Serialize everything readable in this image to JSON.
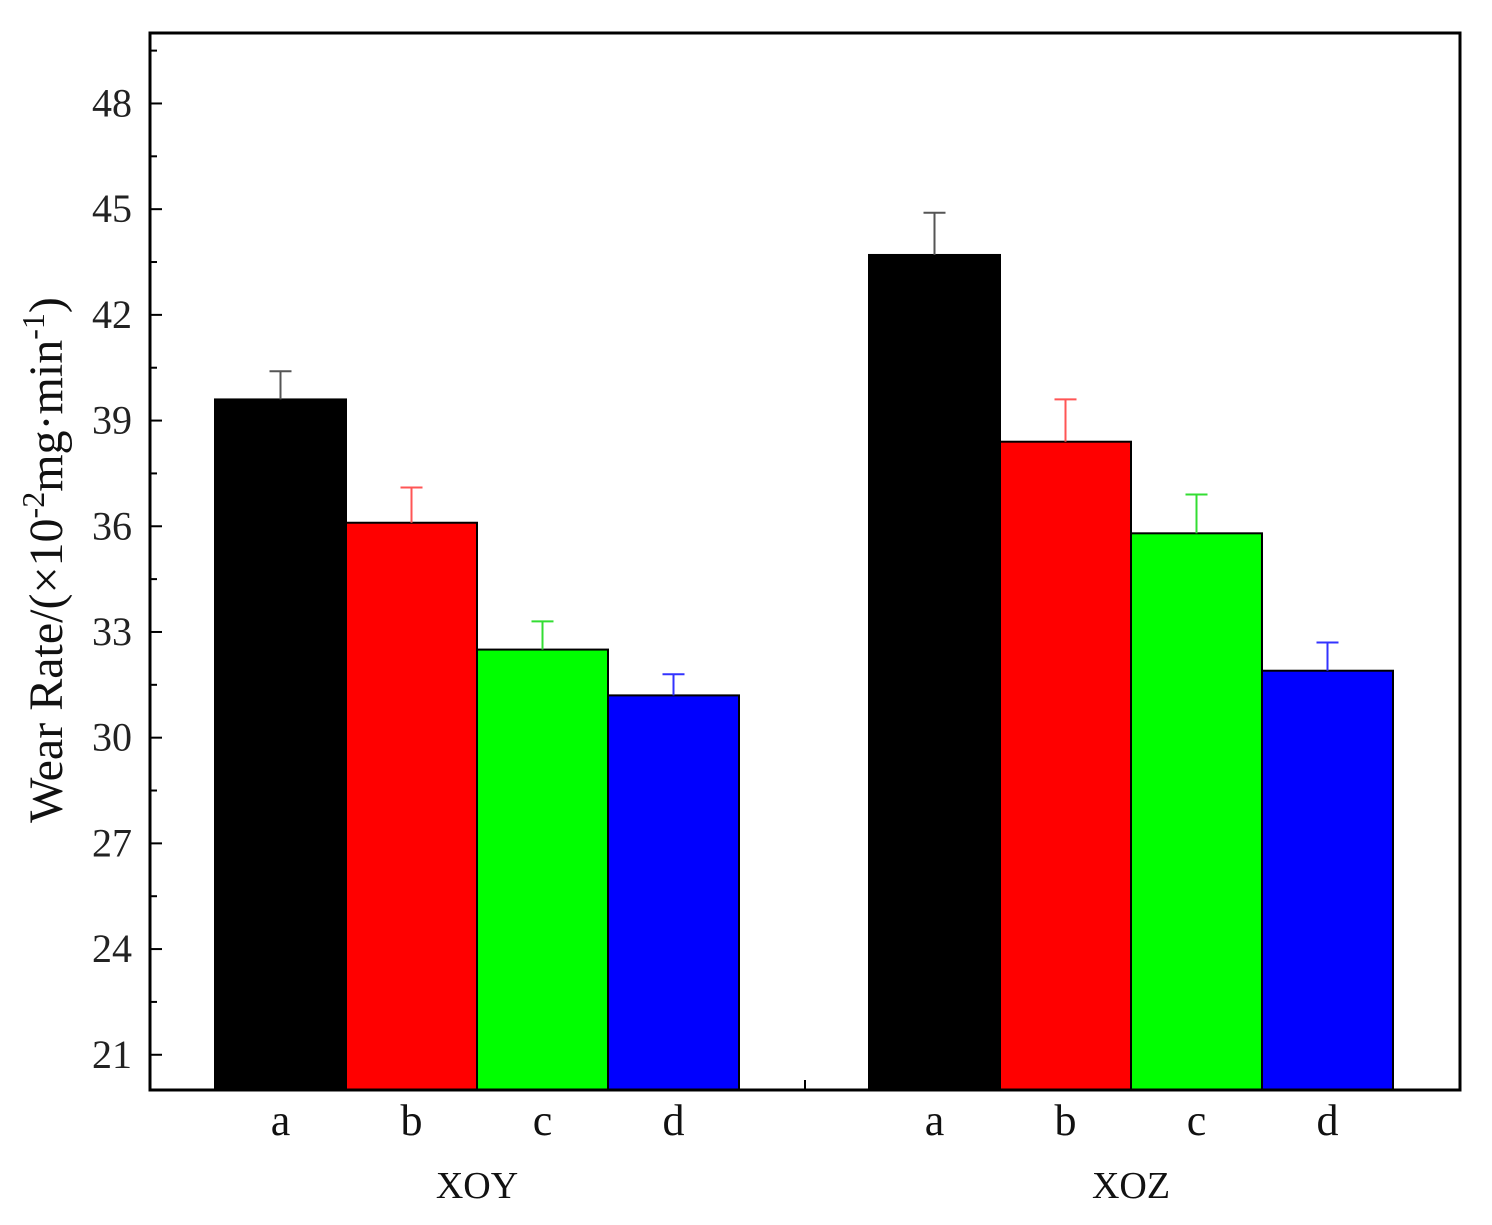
{
  "chart_data": {
    "type": "bar",
    "title": "",
    "xlabel": "",
    "ylabel": {
      "prefix": "Wear Rate/(×10",
      "sup1": "-2",
      "middle": "mg·min",
      "sup2": "-1",
      "suffix": ")"
    },
    "ylim": [
      20,
      50
    ],
    "yticks": [
      21,
      24,
      27,
      30,
      33,
      36,
      39,
      42,
      45,
      48
    ],
    "grid": false,
    "groups": [
      {
        "name": "XOY",
        "bars": [
          {
            "label": "a",
            "value": 39.6,
            "error": 0.8,
            "color": "#000000",
            "error_color": "#555555"
          },
          {
            "label": "b",
            "value": 36.1,
            "error": 1.0,
            "color": "#ff0000",
            "error_color": "#ff5555"
          },
          {
            "label": "c",
            "value": 32.5,
            "error": 0.8,
            "color": "#00ff00",
            "error_color": "#33dd33"
          },
          {
            "label": "d",
            "value": 31.2,
            "error": 0.6,
            "color": "#0000ff",
            "error_color": "#3333ff"
          }
        ]
      },
      {
        "name": "XOZ",
        "bars": [
          {
            "label": "a",
            "value": 43.7,
            "error": 1.2,
            "color": "#000000",
            "error_color": "#555555"
          },
          {
            "label": "b",
            "value": 38.4,
            "error": 1.2,
            "color": "#ff0000",
            "error_color": "#ff5555"
          },
          {
            "label": "c",
            "value": 35.8,
            "error": 1.1,
            "color": "#00ff00",
            "error_color": "#33dd33"
          },
          {
            "label": "d",
            "value": 31.9,
            "error": 0.8,
            "color": "#0000ff",
            "error_color": "#3333ff"
          }
        ]
      }
    ]
  }
}
